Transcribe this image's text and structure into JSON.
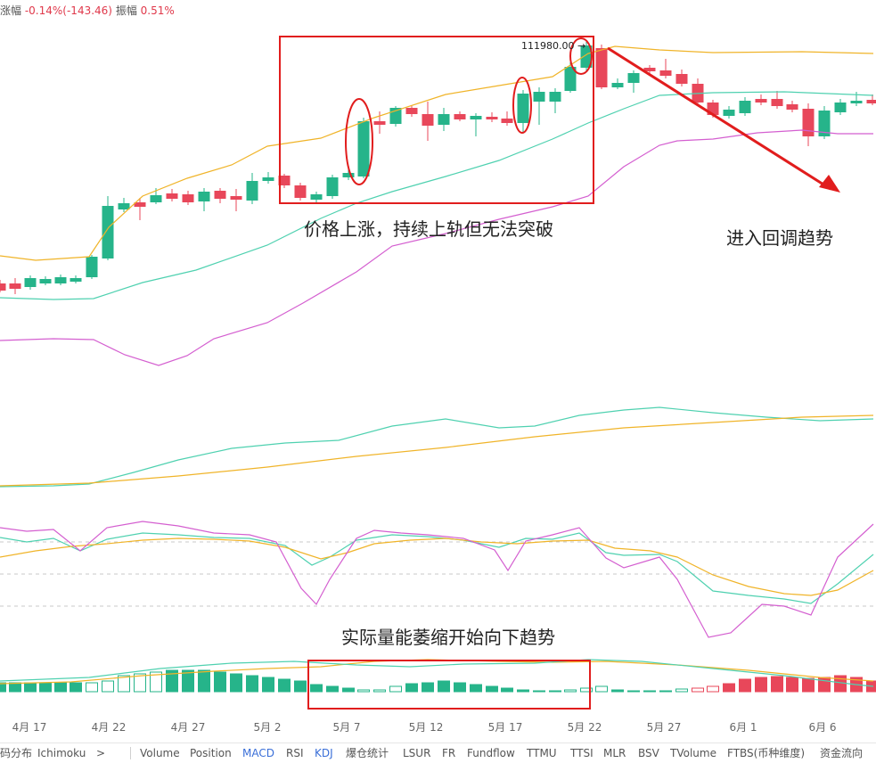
{
  "header": {
    "change_label": "涨幅",
    "change_value": "-0.14%(-143.46)",
    "amplitude_label": "振幅",
    "amplitude_value": "0.51%"
  },
  "annotations": {
    "peak_price": "111980.00",
    "price_text": "价格上涨，持续上轨但无法突破",
    "pullback_text": "进入回调趋势",
    "volume_text": "实际量能萎缩开始向下趋势"
  },
  "x_axis": {
    "ticks": [
      "4月 17",
      "4月 22",
      "4月 27",
      "5月 2",
      "5月 7",
      "5月 12",
      "5月 17",
      "5月 22",
      "5月 27",
      "6月 1",
      "6月 6"
    ]
  },
  "toolbar": {
    "left_items": [
      "筹码分布",
      "Ichimoku",
      ">"
    ],
    "indicator_items": [
      "Volume",
      "Position",
      "MACD",
      "RSI",
      "KDJ",
      "爆仓统计",
      "LSUR",
      "FR",
      "Fundflow",
      "TTMU",
      "TTSI",
      "MLR",
      "BSV",
      "TVolume",
      "FTBS(币种维度)",
      "资金流向"
    ],
    "active": [
      "MACD",
      "KDJ"
    ]
  },
  "colors": {
    "up": "#26b48a",
    "down": "#e8475a",
    "boll_upper": "#f0b429",
    "boll_mid": "#4fd1b0",
    "boll_lower": "#d45fd0",
    "annotation_red": "#e11d1d",
    "kdj_k": "#4fd1b0",
    "kdj_d": "#f0b429",
    "kdj_j": "#d45fd0"
  }
}
